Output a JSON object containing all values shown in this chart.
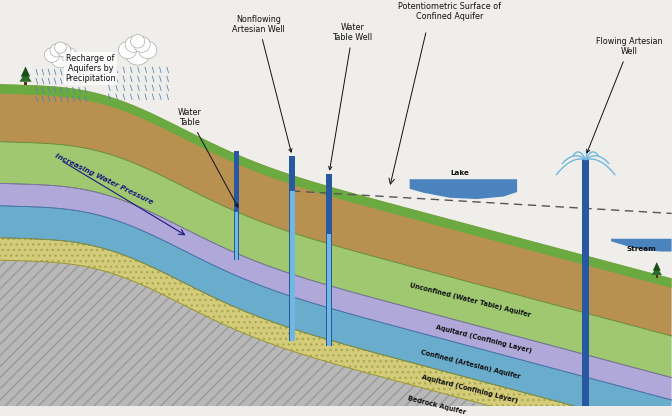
{
  "bg_color": "#f0eeea",
  "layers": {
    "bedrock_color": "#b8b8b8",
    "bedrock_hatch": "///",
    "aquitard2_color": "#d4cc7a",
    "confined_color": "#6aaccc",
    "aquitard1_color": "#b0a8d8",
    "unconfined_color": "#a0c870",
    "soil_brown": "#b89050",
    "soil_dark": "#8b6520",
    "grass_color": "#6aaa40",
    "water_blue": "#4a90c8"
  },
  "labels": {
    "unconfined": "Unconfined (Water Table) Aquifer",
    "aquitard1": "Aquitard (Confining Layer)",
    "confined": "Confined (Artesian) Aquifer",
    "aquitard2": "Aquitard (Confining Layer)",
    "bedrock": "Bedrock Aquifer",
    "increasing": "Increasing Water Pressure",
    "nonflowing": "Nonflowing\nArtesian Well",
    "water_table_lbl": "Water\nTable",
    "wt_well": "Water\nTable Well",
    "potentiometric": "Potentiometric Surface of\nConfined Aquifer",
    "flowing": "Flowing Artesian\nWell",
    "lake": "Lake",
    "stream": "Stream",
    "recharge": "Recharge of\nAquifers by\nPrecipitation"
  },
  "colors": {
    "well": "#2858a0",
    "water_in_well": "#70b8e0",
    "dashed": "#555555",
    "text": "#111111",
    "rain": "#5080b0",
    "tree": "#2a6a2a",
    "lake": "#3878b8",
    "fountain": "#70b8e0"
  }
}
